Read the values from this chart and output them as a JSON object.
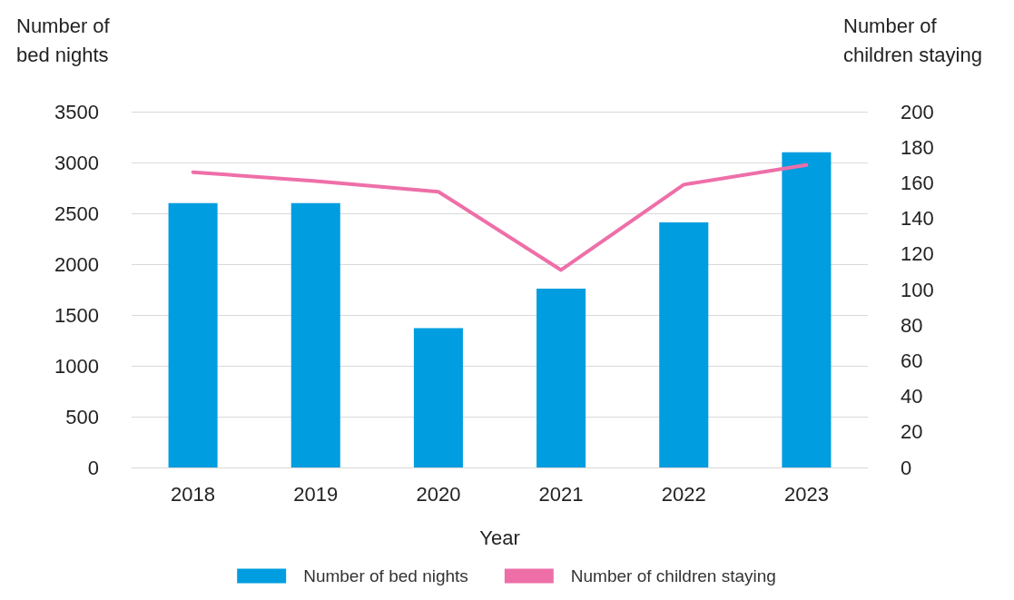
{
  "chart_data": {
    "type": "bar",
    "xlabel": "Year",
    "ylabel": "Number of bed nights",
    "y2label": "Number of children staying",
    "categories": [
      "2018",
      "2019",
      "2020",
      "2021",
      "2022",
      "2023"
    ],
    "series": [
      {
        "name": "Number of bed nights",
        "color": "#009de0",
        "values": [
          2600,
          2600,
          1370,
          1760,
          2410,
          3100
        ]
      },
      {
        "name": "Number of children staying",
        "type": "line",
        "axis": "y2",
        "color": "#ee6fa8",
        "values": [
          166,
          161,
          155,
          111,
          159,
          170
        ]
      }
    ],
    "ylim": [
      0,
      3500
    ],
    "yticks": [
      0,
      500,
      1000,
      1500,
      2000,
      2500,
      3000,
      3500
    ],
    "y2lim": [
      0,
      200
    ],
    "y2ticks": [
      0,
      20,
      40,
      60,
      80,
      100,
      120,
      140,
      160,
      180,
      200
    ],
    "grid": "y",
    "legend": "bottom",
    "marker": "none",
    "line_style": "solid"
  }
}
